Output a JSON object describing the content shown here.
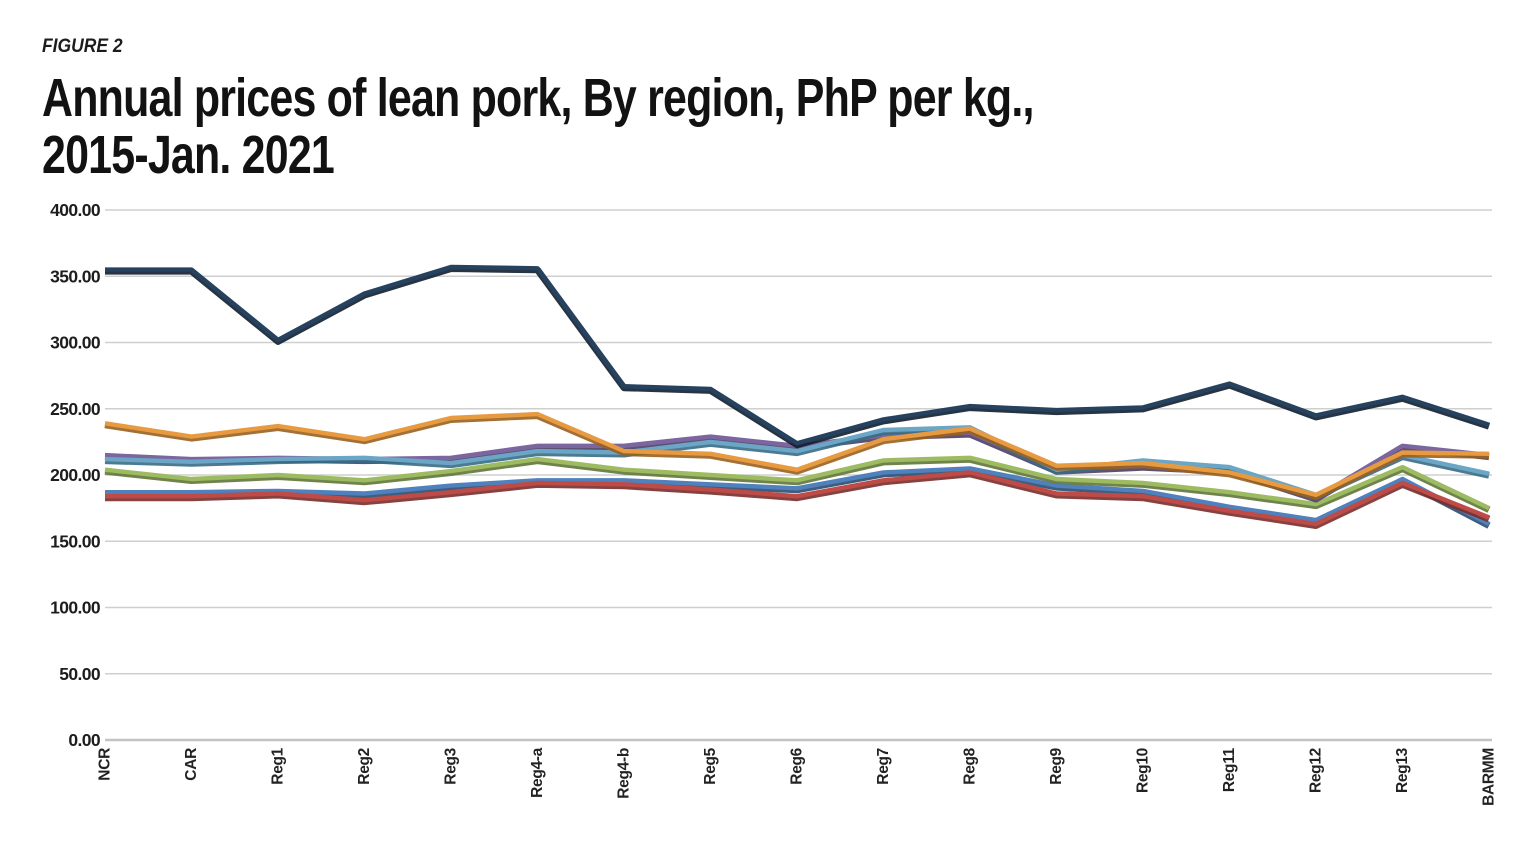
{
  "figure_label": "FIGURE 2",
  "title_line1": "Annual prices of lean pork, By region, PhP per kg.,",
  "title_line2": "2015-Jan. 2021",
  "chart_data": {
    "type": "line",
    "title": "Annual prices of lean pork, By region, PhP per kg., 2015-Jan. 2021",
    "xlabel": "",
    "ylabel": "PhP per kg.",
    "ylim": [
      0,
      400
    ],
    "ytick_step": 50,
    "grid": "horizontal",
    "legend": "none",
    "y_ticks": [
      "400.00",
      "350.00",
      "300.00",
      "250.00",
      "200.00",
      "150.00",
      "100.00",
      "50.00",
      "0.00"
    ],
    "categories": [
      "NCR",
      "CAR",
      "Reg1",
      "Reg2",
      "Reg3",
      "Reg4-a",
      "Reg4-b",
      "Reg5",
      "Reg6",
      "Reg7",
      "Reg8",
      "Reg9",
      "Reg10",
      "Reg11",
      "Reg12",
      "Reg13",
      "BARMM"
    ],
    "series": [
      {
        "name": "blue-line",
        "color": "#4F81BD",
        "edge": "#2C4B70",
        "values": [
          187,
          187,
          188,
          186,
          192,
          196,
          196,
          193,
          190,
          202,
          205,
          192,
          188,
          176,
          166,
          197,
          163
        ]
      },
      {
        "name": "red-line",
        "color": "#BF4B47",
        "edge": "#792E2B",
        "values": [
          184,
          184,
          186,
          181,
          187,
          194,
          193,
          189,
          184,
          196,
          202,
          186,
          184,
          173,
          163,
          194,
          168
        ]
      },
      {
        "name": "green-line",
        "color": "#9DBB61",
        "edge": "#617538",
        "values": [
          204,
          197,
          200,
          196,
          203,
          212,
          204,
          200,
          196,
          211,
          213,
          197,
          194,
          187,
          178,
          206,
          175
        ]
      },
      {
        "name": "purple-line",
        "color": "#7B66A0",
        "edge": "#4D3F65",
        "values": [
          215,
          212,
          213,
          212,
          213,
          222,
          222,
          229,
          222,
          230,
          232,
          204,
          207,
          204,
          183,
          222,
          215
        ]
      },
      {
        "name": "aqua-line",
        "color": "#6BA6C6",
        "edge": "#376B85",
        "values": [
          212,
          210,
          212,
          213,
          209,
          218,
          217,
          225,
          218,
          234,
          236,
          204,
          211,
          206,
          185,
          215,
          201
        ]
      },
      {
        "name": "orange-line",
        "color": "#E79A40",
        "edge": "#996020",
        "values": [
          239,
          229,
          237,
          227,
          243,
          246,
          218,
          216,
          204,
          227,
          235,
          207,
          209,
          202,
          185,
          217,
          216
        ]
      },
      {
        "name": "navy-line",
        "color": "#26425F",
        "edge": "#101E2F",
        "values": [
          355,
          355,
          302,
          337,
          357,
          356,
          267,
          265,
          224,
          242,
          252,
          249,
          251,
          269,
          245,
          259,
          238
        ]
      }
    ]
  }
}
